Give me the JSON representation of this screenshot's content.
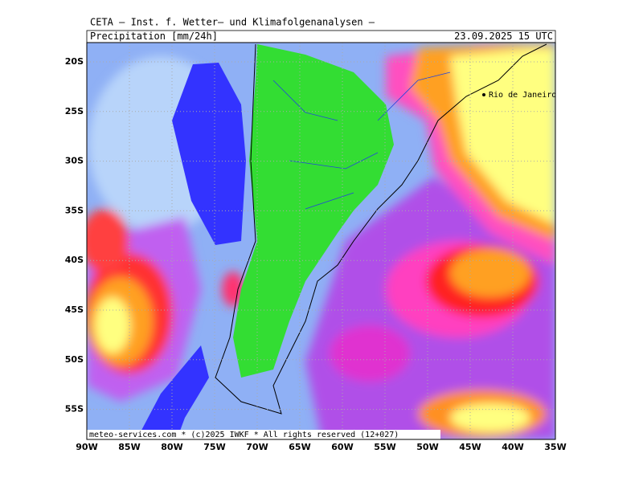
{
  "header": {
    "institute": "CETA — Inst. f. Wetter— und Klimafolgenanalysen —",
    "title": "Precipitation [mm/24h]",
    "datetime": "23.09.2025 15 UTC"
  },
  "axes": {
    "lat_labels": [
      "20S",
      "25S",
      "30S",
      "35S",
      "40S",
      "45S",
      "50S",
      "55S"
    ],
    "lon_labels": [
      "90W",
      "85W",
      "80W",
      "75W",
      "70W",
      "65W",
      "60W",
      "55W",
      "50W",
      "45W",
      "40W",
      "35W"
    ]
  },
  "places": [
    {
      "label": "Rio de Janeiro"
    }
  ],
  "footer": "meteo-services.com * (c)2025 IWKF * All rights reserved (12+027)"
}
